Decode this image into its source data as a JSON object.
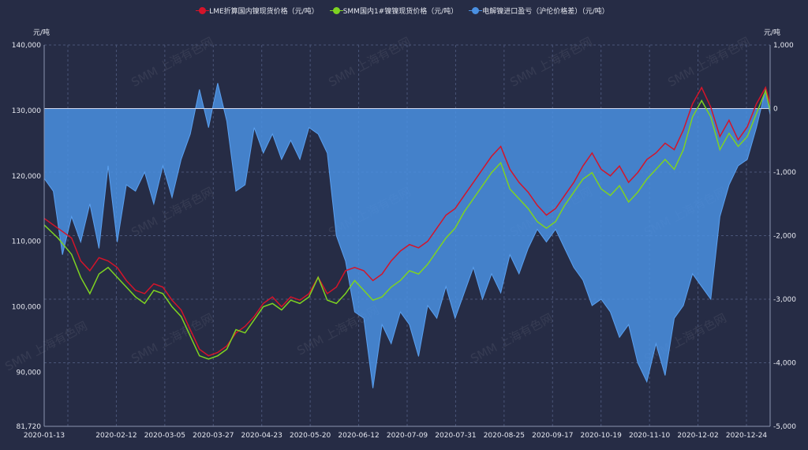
{
  "legend": [
    {
      "label": "LME折算国内镍现货价格（元/吨）",
      "color": "#d4142a"
    },
    {
      "label": "SMM国内1#镍镍现货价格（元/吨）",
      "color": "#7ed321"
    },
    {
      "label": "电解镍进口盈亏（沪伦价格差）（元/吨）",
      "color": "#4a90e2"
    }
  ],
  "units": {
    "left": "元/吨",
    "right": "元/吨"
  },
  "watermark": "SMM 上海有色网",
  "chart_data": {
    "type": "line",
    "x_labels": [
      "2020-01-13",
      "2020-02-12",
      "2020-03-05",
      "2020-03-27",
      "2020-04-23",
      "2020-05-20",
      "2020-06-12",
      "2020-07-09",
      "2020-07-31",
      "2020-08-25",
      "2020-09-17",
      "2020-10-19",
      "2020-11-10",
      "2020-12-02",
      "2020-12-24"
    ],
    "y_left": {
      "ticks": [
        81720,
        90000,
        100000,
        110000,
        120000,
        130000,
        140000
      ],
      "labels": [
        "81,720",
        "90,000",
        "100,000",
        "110,000",
        "120,000",
        "130,000",
        "140,000"
      ],
      "range": [
        81720,
        140000
      ]
    },
    "y_right": {
      "ticks": [
        -5000,
        -4000,
        -3000,
        -2000,
        -1000,
        0,
        1000
      ],
      "labels": [
        "-5,000",
        "-4,000",
        "-3,000",
        "-2,000",
        "-1,000",
        "0",
        "1,000"
      ],
      "range": [
        -5000,
        1000
      ]
    },
    "series": [
      {
        "name": "LME折算国内镍现货价格（元/吨）",
        "axis": "left",
        "color": "#d4142a",
        "points": [
          [
            0,
            113500
          ],
          [
            3,
            112000
          ],
          [
            6,
            110500
          ],
          [
            8,
            107000
          ],
          [
            10,
            105500
          ],
          [
            12,
            107500
          ],
          [
            14,
            107000
          ],
          [
            16,
            106000
          ],
          [
            18,
            104000
          ],
          [
            20,
            102500
          ],
          [
            22,
            102000
          ],
          [
            24,
            103500
          ],
          [
            26,
            103000
          ],
          [
            28,
            101000
          ],
          [
            30,
            99500
          ],
          [
            32,
            96500
          ],
          [
            34,
            93500
          ],
          [
            36,
            92500
          ],
          [
            38,
            93000
          ],
          [
            40,
            94000
          ],
          [
            42,
            96000
          ],
          [
            44,
            97000
          ],
          [
            46,
            98500
          ],
          [
            48,
            100500
          ],
          [
            50,
            101500
          ],
          [
            52,
            100000
          ],
          [
            54,
            101500
          ],
          [
            56,
            101000
          ],
          [
            58,
            102000
          ],
          [
            60,
            104500
          ],
          [
            62,
            102000
          ],
          [
            64,
            103000
          ],
          [
            66,
            105500
          ],
          [
            68,
            106000
          ],
          [
            70,
            105500
          ],
          [
            72,
            104000
          ],
          [
            74,
            105000
          ],
          [
            76,
            107000
          ],
          [
            78,
            108500
          ],
          [
            80,
            109500
          ],
          [
            82,
            109000
          ],
          [
            84,
            110000
          ],
          [
            86,
            112000
          ],
          [
            88,
            114000
          ],
          [
            90,
            115000
          ],
          [
            92,
            117000
          ],
          [
            94,
            119000
          ],
          [
            96,
            121000
          ],
          [
            98,
            123000
          ],
          [
            100,
            124500
          ],
          [
            102,
            121000
          ],
          [
            104,
            119000
          ],
          [
            106,
            117500
          ],
          [
            108,
            115500
          ],
          [
            110,
            114000
          ],
          [
            112,
            115000
          ],
          [
            114,
            117000
          ],
          [
            116,
            119000
          ],
          [
            118,
            121500
          ],
          [
            120,
            123500
          ],
          [
            122,
            121000
          ],
          [
            124,
            120000
          ],
          [
            126,
            121500
          ],
          [
            128,
            119000
          ],
          [
            130,
            120500
          ],
          [
            132,
            122500
          ],
          [
            134,
            123500
          ],
          [
            136,
            125000
          ],
          [
            138,
            124000
          ],
          [
            140,
            127000
          ],
          [
            142,
            131000
          ],
          [
            144,
            133500
          ],
          [
            146,
            130500
          ],
          [
            148,
            126000
          ],
          [
            150,
            128500
          ],
          [
            152,
            125500
          ],
          [
            154,
            127500
          ],
          [
            156,
            131000
          ],
          [
            158,
            133500
          ],
          [
            159,
            131000
          ]
        ]
      },
      {
        "name": "SMM国内1#镍镍现货价格（元/吨）",
        "axis": "left",
        "color": "#7ed321",
        "points": [
          [
            0,
            112500
          ],
          [
            3,
            110500
          ],
          [
            6,
            108000
          ],
          [
            8,
            104500
          ],
          [
            10,
            102000
          ],
          [
            12,
            105000
          ],
          [
            14,
            106000
          ],
          [
            16,
            104500
          ],
          [
            18,
            103000
          ],
          [
            20,
            101500
          ],
          [
            22,
            100500
          ],
          [
            24,
            102500
          ],
          [
            26,
            102000
          ],
          [
            28,
            100000
          ],
          [
            30,
            98500
          ],
          [
            32,
            95500
          ],
          [
            34,
            92500
          ],
          [
            36,
            92000
          ],
          [
            38,
            92500
          ],
          [
            40,
            93500
          ],
          [
            42,
            96500
          ],
          [
            44,
            96000
          ],
          [
            46,
            98000
          ],
          [
            48,
            100000
          ],
          [
            50,
            100500
          ],
          [
            52,
            99500
          ],
          [
            54,
            101000
          ],
          [
            56,
            100500
          ],
          [
            58,
            101500
          ],
          [
            60,
            104500
          ],
          [
            62,
            101000
          ],
          [
            64,
            100500
          ],
          [
            66,
            102000
          ],
          [
            68,
            104000
          ],
          [
            70,
            102500
          ],
          [
            72,
            101000
          ],
          [
            74,
            101500
          ],
          [
            76,
            103000
          ],
          [
            78,
            104000
          ],
          [
            80,
            105500
          ],
          [
            82,
            105000
          ],
          [
            84,
            106500
          ],
          [
            86,
            108500
          ],
          [
            88,
            110500
          ],
          [
            90,
            112000
          ],
          [
            92,
            114500
          ],
          [
            94,
            116500
          ],
          [
            96,
            118500
          ],
          [
            98,
            120500
          ],
          [
            100,
            122000
          ],
          [
            102,
            118000
          ],
          [
            104,
            116500
          ],
          [
            106,
            115000
          ],
          [
            108,
            113000
          ],
          [
            110,
            112000
          ],
          [
            112,
            113000
          ],
          [
            114,
            115500
          ],
          [
            116,
            117500
          ],
          [
            118,
            119500
          ],
          [
            120,
            120500
          ],
          [
            122,
            118000
          ],
          [
            124,
            117000
          ],
          [
            126,
            118500
          ],
          [
            128,
            116000
          ],
          [
            130,
            117500
          ],
          [
            132,
            119500
          ],
          [
            134,
            121000
          ],
          [
            136,
            122500
          ],
          [
            138,
            121000
          ],
          [
            140,
            124000
          ],
          [
            142,
            129000
          ],
          [
            144,
            131500
          ],
          [
            146,
            129000
          ],
          [
            148,
            124000
          ],
          [
            150,
            126500
          ],
          [
            152,
            124500
          ],
          [
            154,
            126000
          ],
          [
            156,
            129500
          ],
          [
            158,
            133000
          ],
          [
            159,
            130000
          ]
        ]
      },
      {
        "name": "电解镍进口盈亏（沪伦价格差）（元/吨）",
        "axis": "right",
        "type": "area",
        "color": "#4a90e2",
        "points": [
          [
            0,
            -1100
          ],
          [
            2,
            -1300
          ],
          [
            4,
            -2300
          ],
          [
            6,
            -1700
          ],
          [
            8,
            -2100
          ],
          [
            10,
            -1500
          ],
          [
            12,
            -2200
          ],
          [
            14,
            -900
          ],
          [
            16,
            -2100
          ],
          [
            18,
            -1200
          ],
          [
            20,
            -1300
          ],
          [
            22,
            -1000
          ],
          [
            24,
            -1500
          ],
          [
            26,
            -900
          ],
          [
            28,
            -1400
          ],
          [
            30,
            -800
          ],
          [
            32,
            -400
          ],
          [
            34,
            300
          ],
          [
            36,
            -300
          ],
          [
            38,
            400
          ],
          [
            40,
            -200
          ],
          [
            42,
            -1300
          ],
          [
            44,
            -1200
          ],
          [
            46,
            -300
          ],
          [
            48,
            -700
          ],
          [
            50,
            -400
          ],
          [
            52,
            -800
          ],
          [
            54,
            -500
          ],
          [
            56,
            -800
          ],
          [
            58,
            -300
          ],
          [
            60,
            -400
          ],
          [
            62,
            -700
          ],
          [
            64,
            -2000
          ],
          [
            66,
            -2400
          ],
          [
            68,
            -3200
          ],
          [
            70,
            -3300
          ],
          [
            72,
            -4400
          ],
          [
            74,
            -3400
          ],
          [
            76,
            -3700
          ],
          [
            78,
            -3200
          ],
          [
            80,
            -3400
          ],
          [
            82,
            -3900
          ],
          [
            84,
            -3100
          ],
          [
            86,
            -3300
          ],
          [
            88,
            -2800
          ],
          [
            90,
            -3300
          ],
          [
            92,
            -2900
          ],
          [
            94,
            -2500
          ],
          [
            96,
            -3000
          ],
          [
            98,
            -2600
          ],
          [
            100,
            -2900
          ],
          [
            102,
            -2300
          ],
          [
            104,
            -2600
          ],
          [
            106,
            -2200
          ],
          [
            108,
            -1900
          ],
          [
            110,
            -2100
          ],
          [
            112,
            -1900
          ],
          [
            114,
            -2200
          ],
          [
            116,
            -2500
          ],
          [
            118,
            -2700
          ],
          [
            120,
            -3100
          ],
          [
            122,
            -3000
          ],
          [
            124,
            -3200
          ],
          [
            126,
            -3600
          ],
          [
            128,
            -3400
          ],
          [
            130,
            -4000
          ],
          [
            132,
            -4300
          ],
          [
            134,
            -3700
          ],
          [
            136,
            -4200
          ],
          [
            138,
            -3300
          ],
          [
            140,
            -3100
          ],
          [
            142,
            -2600
          ],
          [
            144,
            -2800
          ],
          [
            146,
            -3000
          ],
          [
            148,
            -1700
          ],
          [
            150,
            -1200
          ],
          [
            152,
            -900
          ],
          [
            154,
            -800
          ],
          [
            156,
            -300
          ],
          [
            158,
            300
          ],
          [
            159,
            -100
          ]
        ]
      }
    ],
    "grid": true
  }
}
